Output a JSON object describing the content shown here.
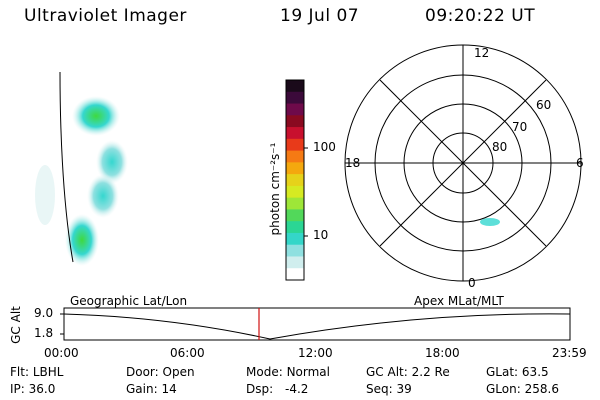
{
  "header": {
    "title": "Ultraviolet Imager",
    "date": "19 Jul 07",
    "time": "09:20:22 UT"
  },
  "colorbar": {
    "label": "photon cm⁻²s⁻¹",
    "ticks": [
      "100",
      "10"
    ],
    "colors": [
      "#1a0a1a",
      "#3b0a3a",
      "#6e0a4a",
      "#8a0a20",
      "#c8102e",
      "#e83a1a",
      "#f57a14",
      "#f4a80e",
      "#e6d21a",
      "#d6ea22",
      "#9ee638",
      "#52d85a",
      "#2bd694",
      "#34d6c8",
      "#8fe0e0",
      "#d0eeee",
      "#ffffff"
    ]
  },
  "polar": {
    "labels": {
      "top": "12",
      "left": "18",
      "right": "6",
      "bottom": "0"
    },
    "lat_labels": [
      "60",
      "70",
      "80"
    ]
  },
  "timeline": {
    "left_label": "Geographic Lat/Lon",
    "right_label": "Apex MLat/MLT",
    "axis_label": "GC Alt",
    "y_ticks": [
      "9.0",
      "1.8"
    ],
    "x_ticks": [
      "00:00",
      "06:00",
      "12:00",
      "18:00",
      "23:59"
    ],
    "current_time_fraction": 0.389
  },
  "status": {
    "row1": [
      {
        "key": "Flt:",
        "val": "LBHL"
      },
      {
        "key": "Door:",
        "val": "Open"
      },
      {
        "key": "Mode:",
        "val": "Normal"
      },
      {
        "key": "GC Alt:",
        "val": "2.2 Re"
      },
      {
        "key": "GLat:",
        "val": "63.5"
      }
    ],
    "row2": [
      {
        "key": "IP:",
        "val": "36.0"
      },
      {
        "key": "Gain:",
        "val": "14"
      },
      {
        "key": "Dsp:",
        "val": "-4.2"
      },
      {
        "key": "Seq:",
        "val": "39"
      },
      {
        "key": "GLon:",
        "val": "258.6"
      }
    ]
  },
  "accent_colors": {
    "marker": "#d01010",
    "aurora_green": "#3fd93f",
    "aurora_cyan": "#35d7cf"
  }
}
